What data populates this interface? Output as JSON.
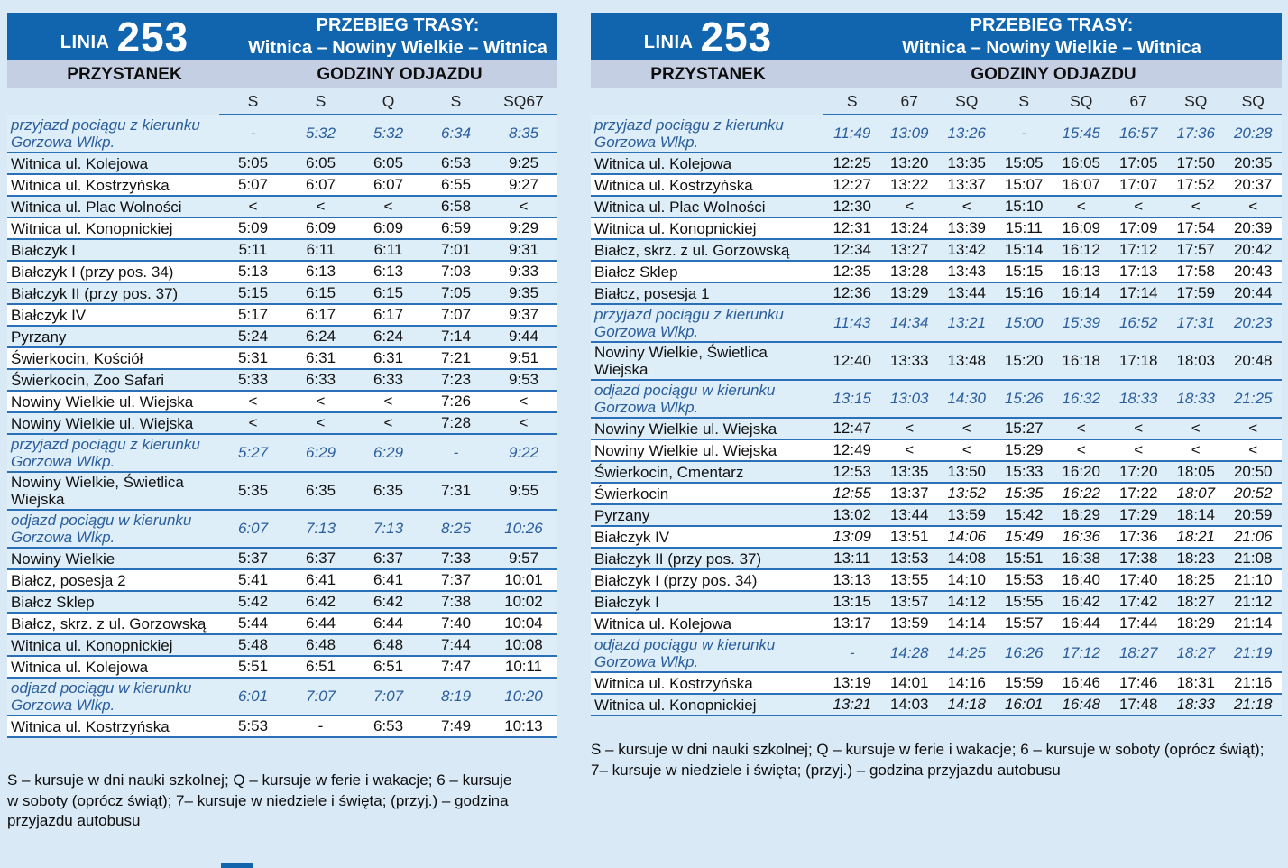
{
  "colors": {
    "header_blue": "#1065ae",
    "band": "#c5cfe4",
    "divider": "#2a70b8",
    "page_bg": "#d9e9f6",
    "stripe": "#ddeef9",
    "train_text": "#2b5d9b"
  },
  "left_panel": {
    "line_label": "LINIA",
    "line_number": "253",
    "route_title": "PRZEBIEG TRASY:",
    "route_subtitle": "Witnica – Nowiny Wielkie – Witnica",
    "stop_header": "PRZYSTANEK",
    "times_header": "GODZINY ODJAZDU",
    "columns": [
      "S",
      "S",
      "Q",
      "S",
      "SQ67"
    ],
    "rows": [
      {
        "type": "train",
        "name": "przyjazd pociągu z kierunku Gorzowa Wlkp.",
        "times": [
          "-",
          "5:32",
          "5:32",
          "6:34",
          "8:35"
        ]
      },
      {
        "name": "Witnica ul. Kolejowa",
        "times": [
          "5:05",
          "6:05",
          "6:05",
          "6:53",
          "9:25"
        ]
      },
      {
        "name": "Witnica ul. Kostrzyńska",
        "times": [
          "5:07",
          "6:07",
          "6:07",
          "6:55",
          "9:27"
        ]
      },
      {
        "name": "Witnica ul. Plac Wolności",
        "times": [
          "<",
          "<",
          "<",
          "6:58",
          "<"
        ]
      },
      {
        "name": "Witnica ul. Konopnickiej",
        "times": [
          "5:09",
          "6:09",
          "6:09",
          "6:59",
          "9:29"
        ]
      },
      {
        "name": "Białczyk I",
        "times": [
          "5:11",
          "6:11",
          "6:11",
          "7:01",
          "9:31"
        ]
      },
      {
        "name": "Białczyk I (przy pos. 34)",
        "times": [
          "5:13",
          "6:13",
          "6:13",
          "7:03",
          "9:33"
        ]
      },
      {
        "name": "Białczyk II (przy pos. 37)",
        "times": [
          "5:15",
          "6:15",
          "6:15",
          "7:05",
          "9:35"
        ]
      },
      {
        "name": "Białczyk IV",
        "times": [
          "5:17",
          "6:17",
          "6:17",
          "7:07",
          "9:37"
        ]
      },
      {
        "name": "Pyrzany",
        "times": [
          "5:24",
          "6:24",
          "6:24",
          "7:14",
          "9:44"
        ]
      },
      {
        "name": "Świerkocin, Kościół",
        "times": [
          "5:31",
          "6:31",
          "6:31",
          "7:21",
          "9:51"
        ]
      },
      {
        "name": "Świerkocin, Zoo Safari",
        "times": [
          "5:33",
          "6:33",
          "6:33",
          "7:23",
          "9:53"
        ]
      },
      {
        "name": "Nowiny Wielkie ul. Wiejska",
        "times": [
          "<",
          "<",
          "<",
          "7:26",
          "<"
        ]
      },
      {
        "name": "Nowiny Wielkie ul. Wiejska",
        "times": [
          "<",
          "<",
          "<",
          "7:28",
          "<"
        ]
      },
      {
        "type": "train",
        "name": "przyjazd pociągu z kierunku Gorzowa Wlkp.",
        "times": [
          "5:27",
          "6:29",
          "6:29",
          "-",
          "9:22"
        ]
      },
      {
        "name": "Nowiny Wielkie, Świetlica Wiejska",
        "times": [
          "5:35",
          "6:35",
          "6:35",
          "7:31",
          "9:55"
        ]
      },
      {
        "type": "train",
        "name": "odjazd pociągu w kierunku Gorzowa Wlkp.",
        "times": [
          "6:07",
          "7:13",
          "7:13",
          "8:25",
          "10:26"
        ]
      },
      {
        "name": "Nowiny Wielkie",
        "times": [
          "5:37",
          "6:37",
          "6:37",
          "7:33",
          "9:57"
        ]
      },
      {
        "name": "Białcz, posesja 2",
        "times": [
          "5:41",
          "6:41",
          "6:41",
          "7:37",
          "10:01"
        ]
      },
      {
        "name": "Białcz Sklep",
        "times": [
          "5:42",
          "6:42",
          "6:42",
          "7:38",
          "10:02"
        ]
      },
      {
        "name": "Białcz, skrz. z ul. Gorzowską",
        "times": [
          "5:44",
          "6:44",
          "6:44",
          "7:40",
          "10:04"
        ]
      },
      {
        "name": "Witnica ul. Konopnickiej",
        "times": [
          "5:48",
          "6:48",
          "6:48",
          "7:44",
          "10:08"
        ]
      },
      {
        "name": "Witnica ul. Kolejowa",
        "times": [
          "5:51",
          "6:51",
          "6:51",
          "7:47",
          "10:11"
        ]
      },
      {
        "type": "train",
        "name": "odjazd pociągu w kierunku Gorzowa Wlkp.",
        "times": [
          "6:01",
          "7:07",
          "7:07",
          "8:19",
          "10:20"
        ]
      },
      {
        "name": "Witnica ul. Kostrzyńska",
        "times": [
          "5:53",
          "-",
          "6:53",
          "7:49",
          "10:13"
        ]
      }
    ],
    "legend": "S – kursuje w dni nauki szkolnej; Q – kursuje w ferie i wakacje; 6 – kursuje w soboty (oprócz świąt); 7– kursuje w niedziele i święta; (przyj.) – godzina przyjazdu autobusu"
  },
  "right_panel": {
    "line_label": "LINIA",
    "line_number": "253",
    "route_title": "PRZEBIEG TRASY:",
    "route_subtitle": "Witnica – Nowiny Wielkie – Witnica",
    "stop_header": "PRZYSTANEK",
    "times_header": "GODZINY ODJAZDU",
    "columns": [
      "S",
      "67",
      "SQ",
      "S",
      "SQ",
      "67",
      "SQ",
      "SQ"
    ],
    "rows": [
      {
        "type": "train",
        "name": "przyjazd pociągu z kierunku Gorzowa Wlkp.",
        "times": [
          "11:49",
          "13:09",
          "13:26",
          "-",
          "15:45",
          "16:57",
          "17:36",
          "20:28"
        ]
      },
      {
        "name": "Witnica ul. Kolejowa",
        "times": [
          "12:25",
          "13:20",
          "13:35",
          "15:05",
          "16:05",
          "17:05",
          "17:50",
          "20:35"
        ]
      },
      {
        "name": "Witnica ul. Kostrzyńska",
        "times": [
          "12:27",
          "13:22",
          "13:37",
          "15:07",
          "16:07",
          "17:07",
          "17:52",
          "20:37"
        ]
      },
      {
        "name": "Witnica ul. Plac Wolności",
        "times": [
          "12:30",
          "<",
          "<",
          "15:10",
          "<",
          "<",
          "<",
          "<"
        ]
      },
      {
        "name": "Witnica ul. Konopnickiej",
        "times": [
          "12:31",
          "13:24",
          "13:39",
          "15:11",
          "16:09",
          "17:09",
          "17:54",
          "20:39"
        ]
      },
      {
        "name": "Białcz, skrz. z ul. Gorzowską",
        "times": [
          "12:34",
          "13:27",
          "13:42",
          "15:14",
          "16:12",
          "17:12",
          "17:57",
          "20:42"
        ]
      },
      {
        "name": "Białcz Sklep",
        "times": [
          "12:35",
          "13:28",
          "13:43",
          "15:15",
          "16:13",
          "17:13",
          "17:58",
          "20:43"
        ]
      },
      {
        "name": "Białcz, posesja 1",
        "times": [
          "12:36",
          "13:29",
          "13:44",
          "15:16",
          "16:14",
          "17:14",
          "17:59",
          "20:44"
        ]
      },
      {
        "type": "train",
        "name": "przyjazd pociągu z kierunku Gorzowa Wlkp.",
        "times": [
          "11:43",
          "14:34",
          "13:21",
          "15:00",
          "15:39",
          "16:52",
          "17:31",
          "20:23"
        ]
      },
      {
        "name": "Nowiny Wielkie, Świetlica Wiejska",
        "times": [
          "12:40",
          "13:33",
          "13:48",
          "15:20",
          "16:18",
          "17:18",
          "18:03",
          "20:48"
        ]
      },
      {
        "type": "train",
        "name": "odjazd pociągu w kierunku Gorzowa Wlkp.",
        "times": [
          "13:15",
          "13:03",
          "14:30",
          "15:26",
          "16:32",
          "18:33",
          "18:33",
          "21:25"
        ]
      },
      {
        "name": "Nowiny Wielkie ul. Wiejska",
        "times": [
          "12:47",
          "<",
          "<",
          "15:27",
          "<",
          "<",
          "<",
          "<"
        ]
      },
      {
        "name": "Nowiny Wielkie ul. Wiejska",
        "times": [
          "12:49",
          "<",
          "<",
          "15:29",
          "<",
          "<",
          "<",
          "<"
        ]
      },
      {
        "name": "Świerkocin, Cmentarz",
        "times": [
          "12:53",
          "13:35",
          "13:50",
          "15:33",
          "16:20",
          "17:20",
          "18:05",
          "20:50"
        ]
      },
      {
        "name": "Świerkocin",
        "times": [
          "12:55",
          "13:37",
          "13:52",
          "15:35",
          "16:22",
          "17:22",
          "18:07",
          "20:52"
        ],
        "italics": [
          true,
          false,
          true,
          true,
          true,
          false,
          true,
          true
        ]
      },
      {
        "name": "Pyrzany",
        "times": [
          "13:02",
          "13:44",
          "13:59",
          "15:42",
          "16:29",
          "17:29",
          "18:14",
          "20:59"
        ]
      },
      {
        "name": "Białczyk IV",
        "times": [
          "13:09",
          "13:51",
          "14:06",
          "15:49",
          "16:36",
          "17:36",
          "18:21",
          "21:06"
        ],
        "italics": [
          true,
          false,
          true,
          true,
          true,
          false,
          true,
          true
        ]
      },
      {
        "name": "Białczyk II (przy pos. 37)",
        "times": [
          "13:11",
          "13:53",
          "14:08",
          "15:51",
          "16:38",
          "17:38",
          "18:23",
          "21:08"
        ]
      },
      {
        "name": "Białczyk I (przy pos. 34)",
        "times": [
          "13:13",
          "13:55",
          "14:10",
          "15:53",
          "16:40",
          "17:40",
          "18:25",
          "21:10"
        ]
      },
      {
        "name": "Białczyk I",
        "times": [
          "13:15",
          "13:57",
          "14:12",
          "15:55",
          "16:42",
          "17:42",
          "18:27",
          "21:12"
        ]
      },
      {
        "name": "Witnica ul. Kolejowa",
        "times": [
          "13:17",
          "13:59",
          "14:14",
          "15:57",
          "16:44",
          "17:44",
          "18:29",
          "21:14"
        ]
      },
      {
        "type": "train",
        "name": "odjazd pociągu w kierunku Gorzowa Wlkp.",
        "times": [
          "-",
          "14:28",
          "14:25",
          "16:26",
          "17:12",
          "18:27",
          "18:27",
          "21:19"
        ]
      },
      {
        "name": "Witnica ul. Kostrzyńska",
        "times": [
          "13:19",
          "14:01",
          "14:16",
          "15:59",
          "16:46",
          "17:46",
          "18:31",
          "21:16"
        ]
      },
      {
        "name": "Witnica ul. Konopnickiej",
        "times": [
          "13:21",
          "14:03",
          "14:18",
          "16:01",
          "16:48",
          "17:48",
          "18:33",
          "21:18"
        ],
        "italics": [
          true,
          false,
          true,
          true,
          true,
          false,
          true,
          true
        ]
      }
    ],
    "legend": "S – kursuje w dni nauki szkolnej; Q – kursuje w ferie i wakacje; 6 – kursuje w soboty (oprócz świąt); 7– kursuje w niedziele i święta; (przyj.) – godzina przyjazdu autobusu"
  }
}
